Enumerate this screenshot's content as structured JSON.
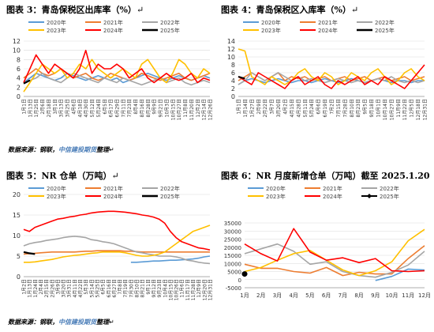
{
  "titles": {
    "fig3": "图表 3：青岛保税区出库率（%）",
    "fig4": "图表 4：青岛保税区入库率（%）",
    "fig5": "图表 5：NR 仓单（万吨）",
    "fig6": "图表 6：NR 月度新增仓单（万吨）截至 2025.1.20"
  },
  "return_mark": "↵",
  "source": {
    "prefix": "数据来源：钢联，",
    "company": "中信建投期货",
    "suffix": "整理"
  },
  "colors": {
    "2020年": "#5b9bd5",
    "2021年": "#ed7d31",
    "2022年": "#a5a5a5",
    "2023年": "#ffc000",
    "2024年": "#ff0000",
    "2025年": "#000000"
  },
  "chart_data": [
    {
      "id": "fig3",
      "type": "line",
      "ylim": [
        0,
        12
      ],
      "yticks": [
        0,
        2,
        4,
        6,
        8,
        10,
        12
      ],
      "xticks": [
        "1月1日",
        "1月13日",
        "1月25日",
        "2月6日",
        "2月18日",
        "3月1日",
        "3月13日",
        "3月25日",
        "4月6日",
        "4月18日",
        "4月30日",
        "5月12日",
        "5月24日",
        "6月5日",
        "6月17日",
        "6月29日",
        "7月11日",
        "7月23日",
        "8月4日",
        "8月16日",
        "8月28日",
        "9月9日",
        "9月21日",
        "10月3日",
        "10月15日",
        "10月27日",
        "11月8日",
        "11月20日",
        "12月2日",
        "12月14日",
        "12月26日"
      ],
      "legend": [
        "2020年",
        "2021年",
        "2022年",
        "2023年",
        "2024年",
        "2025年"
      ],
      "series": [
        {
          "name": "2020年",
          "values": [
            3,
            4,
            5,
            4.5,
            4,
            3.5,
            4,
            5,
            4.5,
            4,
            3.5,
            4,
            4.5,
            4,
            3.5,
            4,
            3,
            3.5,
            4,
            4.5,
            5,
            4.5,
            4,
            3.5,
            4,
            4.5,
            4,
            3.5,
            4,
            4.5,
            4
          ]
        },
        {
          "name": "2021年",
          "values": [
            4,
            5,
            6,
            5,
            4.5,
            5,
            6,
            5,
            4,
            4.5,
            5,
            4,
            3.5,
            4,
            5,
            4.5,
            4,
            3.5,
            4,
            5,
            4.5,
            4,
            3.5,
            4,
            4.5,
            5,
            4,
            3.5,
            4,
            4.5,
            5
          ]
        },
        {
          "name": "2022年",
          "values": [
            3,
            3.5,
            4,
            5,
            4,
            3.5,
            3,
            4,
            5,
            4.5,
            4,
            3.5,
            3,
            4,
            3.5,
            3,
            4,
            3.5,
            3,
            2.5,
            3,
            3.5,
            4,
            3,
            3.5,
            4,
            3,
            2.5,
            3,
            3.5,
            3
          ]
        },
        {
          "name": "2023年",
          "values": [
            1,
            3,
            5,
            7,
            6,
            5,
            6,
            4,
            5,
            7,
            6,
            8,
            6,
            5,
            4,
            5,
            6,
            5,
            4,
            7,
            8,
            6,
            4,
            3,
            5,
            8,
            7,
            5,
            4,
            6,
            5
          ]
        },
        {
          "name": "2024年",
          "values": [
            3,
            6,
            9,
            7,
            5,
            7,
            6,
            5,
            4,
            6,
            10,
            5,
            7,
            6,
            6,
            7,
            6,
            4,
            5,
            6,
            4,
            3,
            4,
            5,
            4,
            3.5,
            4,
            5,
            3,
            4,
            3.5
          ]
        },
        {
          "name": "2025年",
          "values": [
            2.8,
            3.5,
            null,
            null,
            null,
            null,
            null,
            null,
            null,
            null,
            null,
            null,
            null,
            null,
            null,
            null,
            null,
            null,
            null,
            null,
            null,
            null,
            null,
            null,
            null,
            null,
            null,
            null,
            null,
            null,
            null
          ]
        }
      ]
    },
    {
      "id": "fig4",
      "type": "line",
      "ylim": [
        0,
        14
      ],
      "yticks": [
        0,
        2,
        4,
        6,
        8,
        10,
        12,
        14
      ],
      "xticks": [
        "1月1日",
        "1月14日",
        "1月27日",
        "2月9日",
        "2月22日",
        "3月7日",
        "3月20日",
        "4月2日",
        "4月15日",
        "4月28日",
        "5月11日",
        "5月24日",
        "6月6日",
        "6月19日",
        "7月2日",
        "7月15日",
        "7月28日",
        "8月10日",
        "8月23日",
        "9月5日",
        "9月18日",
        "10月1日",
        "10月14日",
        "10月27日",
        "11月9日",
        "11月22日",
        "12月5日",
        "12月18日",
        "12月31日"
      ],
      "legend": [
        "2020年",
        "2021年",
        "2022年",
        "2023年",
        "2024年",
        "2025年"
      ],
      "series": [
        {
          "name": "2020年",
          "values": [
            3,
            4,
            4.5,
            4,
            3.5,
            4,
            4.5,
            4,
            3.5,
            4,
            4,
            3.5,
            4,
            4.5,
            4,
            3.5,
            4,
            4.5,
            4,
            3.5,
            4,
            4.5,
            4,
            3.5,
            4,
            4,
            3.5,
            4,
            4
          ]
        },
        {
          "name": "2021年",
          "values": [
            4,
            5,
            6,
            5,
            4,
            5,
            6,
            4,
            5,
            4.5,
            5,
            4,
            4.5,
            5,
            4,
            4.5,
            5,
            4,
            4.5,
            5,
            4,
            4.5,
            5,
            4,
            4.5,
            5,
            4,
            4.5,
            5
          ]
        },
        {
          "name": "2022年",
          "values": [
            3,
            4,
            6,
            5,
            4,
            5,
            6,
            5,
            4,
            5,
            4,
            4.5,
            4,
            3.5,
            4,
            4.5,
            4,
            3.5,
            4,
            3.5,
            4,
            4.5,
            4,
            5,
            4,
            3.5,
            4,
            3.5,
            4
          ]
        },
        {
          "name": "2023年",
          "values": [
            12,
            11.5,
            5,
            4,
            3,
            5,
            4,
            3,
            4,
            6,
            7,
            5,
            4,
            6,
            5,
            3,
            4,
            6,
            5,
            4,
            6,
            7,
            5,
            3,
            4,
            6,
            7,
            5,
            4
          ]
        },
        {
          "name": "2024年",
          "values": [
            5,
            4,
            3,
            6,
            5,
            4,
            3,
            2,
            4,
            5,
            3,
            4,
            5,
            3,
            2,
            4,
            3,
            4,
            5,
            3,
            4,
            3,
            5,
            4,
            3,
            2,
            4,
            6,
            8
          ]
        },
        {
          "name": "2025年",
          "values": [
            5,
            4.5,
            null,
            null,
            null,
            null,
            null,
            null,
            null,
            null,
            null,
            null,
            null,
            null,
            null,
            null,
            null,
            null,
            null,
            null,
            null,
            null,
            null,
            null,
            null,
            null,
            null,
            null,
            null
          ]
        }
      ]
    },
    {
      "id": "fig5",
      "type": "line",
      "ylim": [
        0,
        20
      ],
      "yticks": [
        0,
        5,
        10,
        15,
        20
      ],
      "xticks": [
        "1月2日",
        "1月13日",
        "1月24日",
        "2月4日",
        "2月15日",
        "2月26日",
        "3月9日",
        "3月20日",
        "3月31日",
        "4月11日",
        "4月22日",
        "5月3日",
        "5月14日",
        "5月25日",
        "6月5日",
        "6月16日",
        "6月27日",
        "7月8日",
        "7月19日",
        "7月30日",
        "8月10日",
        "8月21日",
        "9月1日",
        "9月12日",
        "9月23日",
        "10月4日",
        "10月15日",
        "10月26日",
        "11月6日",
        "11月17日",
        "11月28日",
        "12月9日",
        "12月20日",
        "12月31日"
      ],
      "legend": [
        "2020年",
        "2021年",
        "2022年",
        "2023年",
        "2024年",
        "2025年"
      ],
      "series": [
        {
          "name": "2020年",
          "values": [
            null,
            null,
            null,
            null,
            null,
            null,
            null,
            null,
            null,
            null,
            null,
            null,
            null,
            null,
            null,
            null,
            null,
            null,
            null,
            3.5,
            3.5,
            3.6,
            3.7,
            3.8,
            3.8,
            3.9,
            4,
            4,
            4.1,
            4.2,
            4.3,
            4.5,
            4.8,
            5
          ]
        },
        {
          "name": "2021年",
          "values": [
            5.5,
            5.6,
            5.7,
            5.8,
            5.9,
            6,
            6,
            6,
            6,
            6,
            6.1,
            6.2,
            6.2,
            6.3,
            6.3,
            6.3,
            6.3,
            6.3,
            6.2,
            6.2,
            6.1,
            6,
            6,
            6,
            6,
            6,
            6,
            6,
            6,
            6,
            6,
            6,
            6,
            6
          ]
        },
        {
          "name": "2022年",
          "values": [
            7.5,
            8,
            8.3,
            8.5,
            8.8,
            9,
            9.2,
            9.5,
            9.7,
            9.8,
            9.7,
            9.5,
            9,
            8.8,
            8.5,
            8.3,
            8,
            7.5,
            7,
            6.5,
            6,
            5.8,
            5.5,
            5.3,
            5,
            5,
            5,
            4.8,
            4.5,
            4,
            3.8,
            3.5,
            3.3,
            3.2
          ]
        },
        {
          "name": "2023年",
          "values": [
            3.5,
            3.5,
            3.6,
            3.8,
            4,
            4.2,
            4.5,
            4.8,
            5,
            5.2,
            5.3,
            5.5,
            5.7,
            5.8,
            6,
            6,
            6,
            6,
            5.8,
            5.5,
            5.2,
            5,
            5,
            5.2,
            5.5,
            6,
            7,
            8,
            9,
            10,
            11,
            11.5,
            12,
            12.5
          ]
        },
        {
          "name": "2024年",
          "values": [
            11.5,
            11,
            12,
            12.5,
            13,
            13.5,
            14,
            14.2,
            14.5,
            14.7,
            15,
            15.2,
            15.5,
            15.7,
            15.8,
            15.9,
            15.9,
            15.8,
            15.7,
            15.5,
            15.3,
            15,
            14.8,
            14.5,
            14,
            13,
            11,
            9.5,
            8.5,
            8,
            7.5,
            7,
            6.8,
            6.5
          ]
        },
        {
          "name": "2025年",
          "values": [
            6,
            5.7,
            5.5,
            null,
            null,
            null,
            null,
            null,
            null,
            null,
            null,
            null,
            null,
            null,
            null,
            null,
            null,
            null,
            null,
            null,
            null,
            null,
            null,
            null,
            null,
            null,
            null,
            null,
            null,
            null,
            null,
            null,
            null,
            null
          ]
        }
      ]
    },
    {
      "id": "fig6",
      "type": "line",
      "ylim": [
        -5000,
        35000
      ],
      "yticks": [
        -5000,
        0,
        5000,
        10000,
        15000,
        20000,
        25000,
        30000,
        35000
      ],
      "categories": [
        "1月",
        "2月",
        "3月",
        "4月",
        "5月",
        "6月",
        "7月",
        "8月",
        "9月",
        "10月",
        "11月",
        "12月"
      ],
      "legend": [
        "2020年",
        "2021年",
        "2022年",
        "2023年",
        "2024年",
        "2025年"
      ],
      "series": [
        {
          "name": "2020年",
          "values": [
            null,
            null,
            null,
            null,
            null,
            null,
            null,
            null,
            -500,
            2000,
            6500,
            6000
          ]
        },
        {
          "name": "2021年",
          "values": [
            9500,
            7000,
            7000,
            5000,
            4000,
            7500,
            2500,
            4500,
            3500,
            3500,
            13000,
            21000
          ]
        },
        {
          "name": "2022年",
          "values": [
            16000,
            19000,
            22000,
            17500,
            9500,
            11000,
            5000,
            2500,
            1500,
            4500,
            9000,
            17500
          ]
        },
        {
          "name": "2023年",
          "values": [
            5000,
            7500,
            12000,
            16000,
            18000,
            12000,
            6000,
            2500,
            5500,
            11000,
            24000,
            31000
          ]
        },
        {
          "name": "2024年",
          "values": [
            22000,
            16000,
            11500,
            31500,
            17000,
            12000,
            13500,
            10500,
            13000,
            5500,
            5000,
            5500
          ]
        },
        {
          "name": "2025年",
          "values": [
            3500,
            null,
            null,
            null,
            null,
            null,
            null,
            null,
            null,
            null,
            null,
            null
          ]
        }
      ]
    }
  ]
}
